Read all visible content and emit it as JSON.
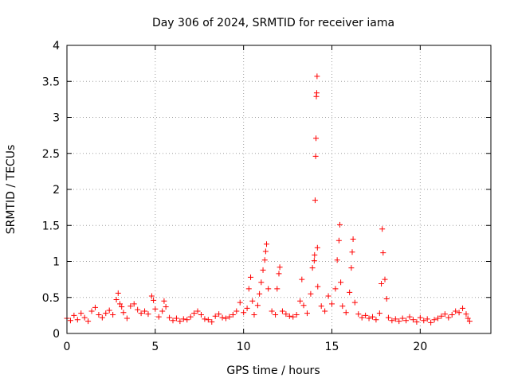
{
  "chart_data": {
    "type": "scatter",
    "title": "Day 306 of 2024, SRMTID for receiver iama",
    "xlabel": "GPS time / hours",
    "ylabel": "SRMTID / TECUs",
    "xlim": [
      0,
      24
    ],
    "ylim": [
      0,
      4
    ],
    "x_ticks": [
      0,
      5,
      10,
      15,
      20
    ],
    "y_ticks": [
      0,
      0.5,
      1,
      1.5,
      2,
      2.5,
      3,
      3.5,
      4
    ],
    "x_tick_labels": [
      "0",
      "5",
      "10",
      "15",
      "20"
    ],
    "y_tick_labels": [
      "0",
      "0.5",
      "1",
      "1.5",
      "2",
      "2.5",
      "3",
      "3.5",
      "4"
    ],
    "grid": true,
    "marker": "+",
    "marker_color": "#ff0000",
    "series": [
      {
        "name": "SRMTID",
        "points": [
          [
            0.0,
            0.21
          ],
          [
            0.2,
            0.18
          ],
          [
            0.4,
            0.25
          ],
          [
            0.6,
            0.19
          ],
          [
            0.8,
            0.28
          ],
          [
            1.0,
            0.22
          ],
          [
            1.2,
            0.17
          ],
          [
            1.4,
            0.31
          ],
          [
            1.6,
            0.36
          ],
          [
            1.8,
            0.26
          ],
          [
            2.0,
            0.22
          ],
          [
            2.2,
            0.28
          ],
          [
            2.4,
            0.32
          ],
          [
            2.6,
            0.26
          ],
          [
            2.8,
            0.47
          ],
          [
            2.9,
            0.56
          ],
          [
            3.0,
            0.41
          ],
          [
            3.1,
            0.37
          ],
          [
            3.2,
            0.29
          ],
          [
            3.4,
            0.21
          ],
          [
            3.6,
            0.38
          ],
          [
            3.8,
            0.41
          ],
          [
            4.0,
            0.33
          ],
          [
            4.2,
            0.28
          ],
          [
            4.4,
            0.31
          ],
          [
            4.6,
            0.27
          ],
          [
            4.8,
            0.52
          ],
          [
            4.9,
            0.46
          ],
          [
            5.0,
            0.34
          ],
          [
            5.2,
            0.23
          ],
          [
            5.4,
            0.31
          ],
          [
            5.5,
            0.45
          ],
          [
            5.6,
            0.37
          ],
          [
            5.8,
            0.22
          ],
          [
            6.0,
            0.18
          ],
          [
            6.2,
            0.21
          ],
          [
            6.4,
            0.17
          ],
          [
            6.6,
            0.2
          ],
          [
            6.8,
            0.19
          ],
          [
            7.0,
            0.23
          ],
          [
            7.2,
            0.28
          ],
          [
            7.4,
            0.31
          ],
          [
            7.6,
            0.26
          ],
          [
            7.8,
            0.2
          ],
          [
            8.0,
            0.19
          ],
          [
            8.2,
            0.16
          ],
          [
            8.4,
            0.24
          ],
          [
            8.6,
            0.27
          ],
          [
            8.8,
            0.22
          ],
          [
            9.0,
            0.21
          ],
          [
            9.2,
            0.23
          ],
          [
            9.4,
            0.26
          ],
          [
            9.6,
            0.31
          ],
          [
            9.8,
            0.43
          ],
          [
            10.0,
            0.29
          ],
          [
            10.2,
            0.35
          ],
          [
            10.3,
            0.62
          ],
          [
            10.4,
            0.78
          ],
          [
            10.5,
            0.45
          ],
          [
            10.6,
            0.26
          ],
          [
            10.8,
            0.39
          ],
          [
            10.9,
            0.55
          ],
          [
            11.0,
            0.71
          ],
          [
            11.1,
            0.88
          ],
          [
            11.2,
            1.02
          ],
          [
            11.25,
            1.14
          ],
          [
            11.3,
            1.24
          ],
          [
            11.4,
            0.62
          ],
          [
            11.6,
            0.31
          ],
          [
            11.8,
            0.26
          ],
          [
            11.9,
            0.62
          ],
          [
            12.0,
            0.83
          ],
          [
            12.05,
            0.92
          ],
          [
            12.2,
            0.31
          ],
          [
            12.4,
            0.27
          ],
          [
            12.6,
            0.24
          ],
          [
            12.8,
            0.23
          ],
          [
            13.0,
            0.26
          ],
          [
            13.2,
            0.45
          ],
          [
            13.3,
            0.75
          ],
          [
            13.4,
            0.39
          ],
          [
            13.6,
            0.28
          ],
          [
            13.8,
            0.55
          ],
          [
            13.9,
            0.91
          ],
          [
            14.0,
            1.01
          ],
          [
            14.02,
            1.09
          ],
          [
            14.05,
            1.85
          ],
          [
            14.08,
            2.46
          ],
          [
            14.1,
            2.71
          ],
          [
            14.12,
            3.29
          ],
          [
            14.14,
            3.34
          ],
          [
            14.16,
            3.57
          ],
          [
            14.18,
            1.19
          ],
          [
            14.2,
            0.65
          ],
          [
            14.4,
            0.38
          ],
          [
            14.6,
            0.31
          ],
          [
            14.8,
            0.52
          ],
          [
            15.0,
            0.41
          ],
          [
            15.2,
            0.62
          ],
          [
            15.3,
            1.02
          ],
          [
            15.4,
            1.29
          ],
          [
            15.45,
            1.51
          ],
          [
            15.5,
            0.71
          ],
          [
            15.6,
            0.38
          ],
          [
            15.8,
            0.29
          ],
          [
            16.0,
            0.57
          ],
          [
            16.1,
            0.91
          ],
          [
            16.15,
            1.13
          ],
          [
            16.2,
            1.31
          ],
          [
            16.3,
            0.43
          ],
          [
            16.5,
            0.27
          ],
          [
            16.7,
            0.22
          ],
          [
            16.9,
            0.25
          ],
          [
            17.1,
            0.21
          ],
          [
            17.3,
            0.23
          ],
          [
            17.5,
            0.19
          ],
          [
            17.7,
            0.28
          ],
          [
            17.8,
            0.69
          ],
          [
            17.85,
            1.45
          ],
          [
            17.9,
            1.12
          ],
          [
            18.0,
            0.75
          ],
          [
            18.1,
            0.48
          ],
          [
            18.2,
            0.22
          ],
          [
            18.4,
            0.18
          ],
          [
            18.6,
            0.2
          ],
          [
            18.8,
            0.17
          ],
          [
            19.0,
            0.21
          ],
          [
            19.2,
            0.18
          ],
          [
            19.4,
            0.23
          ],
          [
            19.6,
            0.19
          ],
          [
            19.8,
            0.16
          ],
          [
            20.0,
            0.22
          ],
          [
            20.2,
            0.18
          ],
          [
            20.4,
            0.2
          ],
          [
            20.6,
            0.15
          ],
          [
            20.8,
            0.19
          ],
          [
            21.0,
            0.21
          ],
          [
            21.2,
            0.24
          ],
          [
            21.4,
            0.27
          ],
          [
            21.6,
            0.22
          ],
          [
            21.8,
            0.26
          ],
          [
            22.0,
            0.31
          ],
          [
            22.2,
            0.29
          ],
          [
            22.4,
            0.35
          ],
          [
            22.6,
            0.27
          ],
          [
            22.7,
            0.21
          ],
          [
            22.8,
            0.17
          ]
        ]
      }
    ]
  }
}
